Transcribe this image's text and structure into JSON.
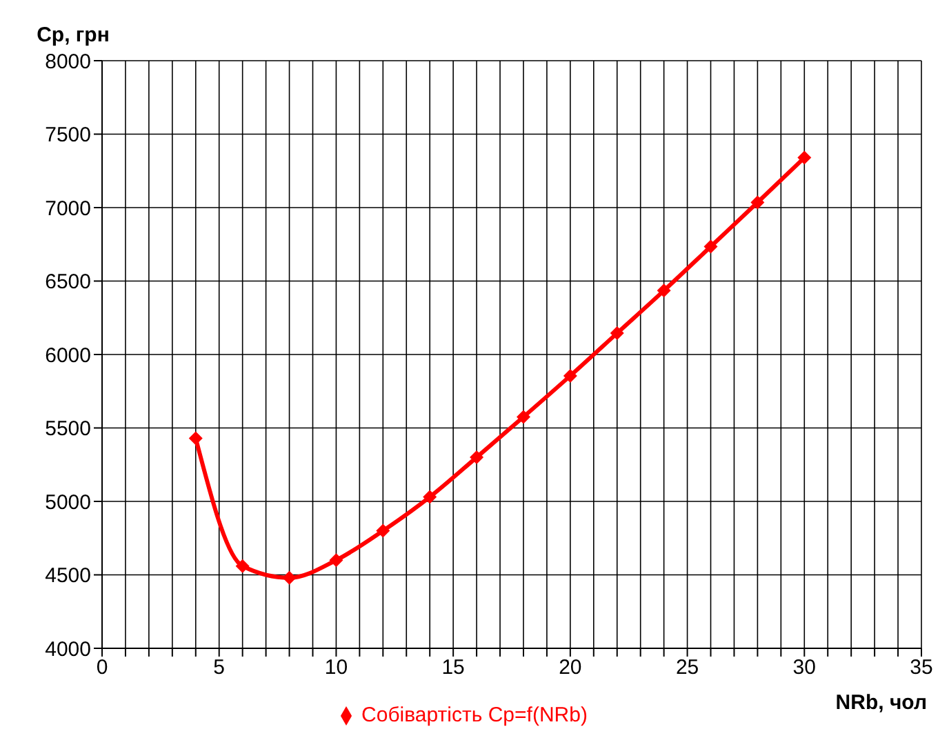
{
  "chart_data": {
    "type": "line",
    "xlabel": "NRb, чол",
    "ylabel": "Ср, грн",
    "series": [
      {
        "name": "Собівартість Ср=f(NRb)",
        "color": "#ff0000",
        "x": [
          4,
          6,
          8,
          10,
          12,
          14,
          16,
          18,
          20,
          22,
          24,
          26,
          28,
          30
        ],
        "values": [
          5430,
          4560,
          4480,
          4600,
          4800,
          5030,
          5300,
          5575,
          5855,
          6145,
          6435,
          6735,
          7035,
          7340
        ]
      }
    ],
    "xlim": [
      0,
      35
    ],
    "xticks": [
      0,
      {
        "value": 1,
        "label": null
      },
      {
        "value": 2,
        "label": null
      },
      {
        "value": 3,
        "label": null
      },
      {
        "value": 4,
        "label": null
      },
      5,
      {
        "value": 6,
        "label": null
      },
      {
        "value": 7,
        "label": null
      },
      {
        "value": 8,
        "label": null
      },
      {
        "value": 9,
        "label": null
      },
      10,
      {
        "value": 11,
        "label": null
      },
      {
        "value": 12,
        "label": null
      },
      {
        "value": 13,
        "label": null
      },
      {
        "value": 14,
        "label": null
      },
      15,
      {
        "value": 16,
        "label": null
      },
      {
        "value": 17,
        "label": null
      },
      {
        "value": 18,
        "label": null
      },
      {
        "value": 19,
        "label": null
      },
      20,
      {
        "value": 21,
        "label": null
      },
      {
        "value": 22,
        "label": null
      },
      {
        "value": 23,
        "label": null
      },
      {
        "value": 24,
        "label": null
      },
      25,
      {
        "value": 26,
        "label": null
      },
      {
        "value": 27,
        "label": null
      },
      {
        "value": 28,
        "label": null
      },
      {
        "value": 29,
        "label": null
      },
      30,
      {
        "value": 31,
        "label": null
      },
      {
        "value": 32,
        "label": null
      },
      {
        "value": 33,
        "label": null
      },
      {
        "value": 34,
        "label": null
      },
      35
    ],
    "ylim": [
      4000,
      8000
    ],
    "yticks": [
      4000,
      4500,
      5000,
      5500,
      6000,
      6500,
      7000,
      7500,
      8000
    ],
    "grid": true,
    "legend": "bottom",
    "marker": "diamond",
    "line_style": "solid"
  }
}
